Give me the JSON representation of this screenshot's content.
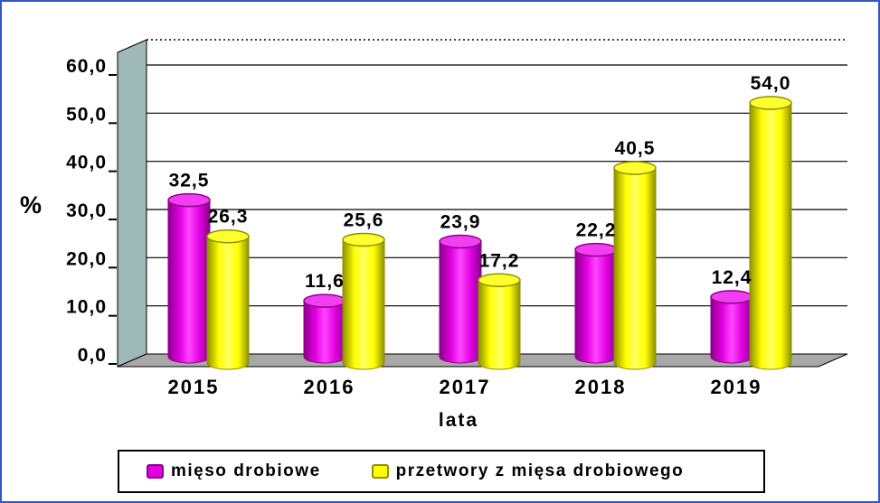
{
  "chart_data": {
    "type": "bar",
    "subtype": "3d-cylinder",
    "categories": [
      "2015",
      "2016",
      "2017",
      "2018",
      "2019"
    ],
    "series": [
      {
        "name": "mięso drobiowe",
        "color": "#e100e1",
        "values": [
          32.5,
          11.6,
          23.9,
          22.2,
          12.4
        ],
        "labels": [
          "32,5",
          "11,6",
          "23,9",
          "22,2",
          "12,4"
        ]
      },
      {
        "name": "przetwory z mięsa drobiowego",
        "color": "#ffff00",
        "values": [
          26.3,
          25.6,
          17.2,
          40.5,
          54.0
        ],
        "labels": [
          "26,3",
          "25,6",
          "17,2",
          "40,5",
          "54,0"
        ]
      }
    ],
    "xlabel": "lata",
    "ylabel": "%",
    "y_ticks": [
      "0,0",
      "10,0",
      "20,0",
      "30,0",
      "40,0",
      "50,0",
      "60,0"
    ],
    "ylim": [
      0,
      65
    ],
    "grid": true,
    "legend_position": "bottom"
  },
  "colors": {
    "series1_dark": "#8c008c",
    "series1_light": "#ff46ff",
    "series1_top": "#f23ef2",
    "series2_dark": "#8f8f00",
    "series2_light": "#ffff60",
    "series2_top": "#ffff2e",
    "wall": "#9fb8b8",
    "floor": "#a8a8a8",
    "grid": "#000000",
    "text": "#000000",
    "frame_border": "#3056c8",
    "background": "#ffffff"
  }
}
